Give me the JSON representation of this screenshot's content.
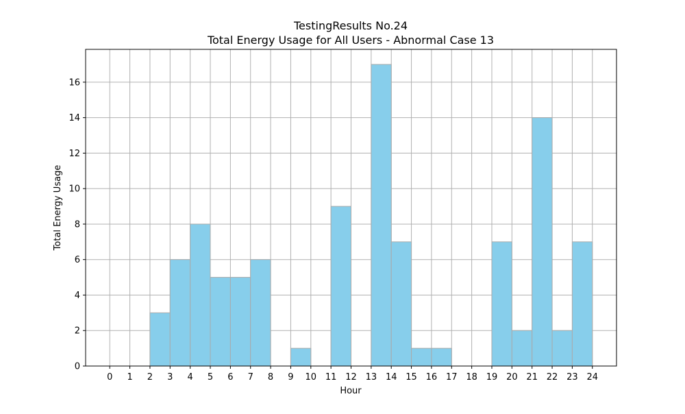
{
  "chart_data": {
    "type": "bar",
    "title": "TestingResults No.24",
    "subtitle": "Total Energy Usage for All Users - Abnormal Case 13",
    "xlabel": "Hour",
    "ylabel": "Total Energy Usage",
    "x_ticks": [
      "0",
      "1",
      "2",
      "3",
      "4",
      "5",
      "6",
      "7",
      "8",
      "9",
      "10",
      "11",
      "12",
      "13",
      "14",
      "15",
      "16",
      "17",
      "18",
      "19",
      "20",
      "21",
      "22",
      "23",
      "24"
    ],
    "y_ticks": [
      "0",
      "2",
      "4",
      "6",
      "8",
      "10",
      "12",
      "14",
      "16"
    ],
    "xlim": [
      -1.2,
      25.2
    ],
    "ylim": [
      0,
      17.85
    ],
    "grid": true,
    "bar_color": "#87ceeb",
    "bar_edge_color": "#aaaaaa",
    "bins": [
      {
        "start": 0,
        "end": 1,
        "value": 0
      },
      {
        "start": 1,
        "end": 2,
        "value": 0
      },
      {
        "start": 2,
        "end": 3,
        "value": 3
      },
      {
        "start": 3,
        "end": 4,
        "value": 6
      },
      {
        "start": 4,
        "end": 5,
        "value": 8
      },
      {
        "start": 5,
        "end": 6,
        "value": 5
      },
      {
        "start": 6,
        "end": 7,
        "value": 5
      },
      {
        "start": 7,
        "end": 8,
        "value": 6
      },
      {
        "start": 8,
        "end": 9,
        "value": 0
      },
      {
        "start": 9,
        "end": 10,
        "value": 1
      },
      {
        "start": 10,
        "end": 11,
        "value": 0
      },
      {
        "start": 11,
        "end": 12,
        "value": 9
      },
      {
        "start": 12,
        "end": 13,
        "value": 0
      },
      {
        "start": 13,
        "end": 14,
        "value": 17
      },
      {
        "start": 14,
        "end": 15,
        "value": 7
      },
      {
        "start": 15,
        "end": 16,
        "value": 1
      },
      {
        "start": 16,
        "end": 17,
        "value": 1
      },
      {
        "start": 17,
        "end": 18,
        "value": 0
      },
      {
        "start": 18,
        "end": 19,
        "value": 0
      },
      {
        "start": 19,
        "end": 20,
        "value": 7
      },
      {
        "start": 20,
        "end": 21,
        "value": 2
      },
      {
        "start": 21,
        "end": 22,
        "value": 14
      },
      {
        "start": 22,
        "end": 23,
        "value": 2
      },
      {
        "start": 23,
        "end": 24,
        "value": 7
      }
    ]
  }
}
